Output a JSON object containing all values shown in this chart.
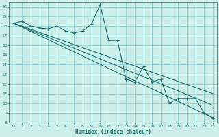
{
  "xlabel": "Humidex (Indice chaleur)",
  "bg_color": "#cceee8",
  "grid_color": "#88cccc",
  "line_color": "#1a7070",
  "xlim": [
    -0.5,
    23.5
  ],
  "ylim": [
    8,
    20.5
  ],
  "xticks": [
    0,
    1,
    2,
    3,
    4,
    5,
    6,
    7,
    8,
    9,
    10,
    11,
    12,
    13,
    14,
    15,
    16,
    17,
    18,
    19,
    20,
    21,
    22,
    23
  ],
  "yticks": [
    8,
    9,
    10,
    11,
    12,
    13,
    14,
    15,
    16,
    17,
    18,
    19,
    20
  ],
  "series1_x": [
    0,
    1,
    2,
    3,
    4,
    5,
    6,
    7,
    8,
    9,
    10,
    11,
    12,
    13,
    14,
    15,
    16,
    17,
    18,
    19,
    20,
    21,
    22,
    23
  ],
  "series1_y": [
    18.3,
    18.5,
    18.0,
    17.8,
    17.7,
    18.0,
    17.5,
    17.3,
    17.5,
    18.2,
    20.2,
    16.5,
    16.5,
    12.5,
    12.2,
    13.8,
    12.2,
    12.5,
    10.0,
    10.5,
    10.5,
    10.5,
    9.0,
    8.5
  ],
  "trend1_x": [
    0,
    23
  ],
  "trend1_y": [
    18.3,
    9.8
  ],
  "trend2_x": [
    0,
    23
  ],
  "trend2_y": [
    18.3,
    8.5
  ],
  "trend3_x": [
    0,
    23
  ],
  "trend3_y": [
    18.3,
    11.0
  ]
}
